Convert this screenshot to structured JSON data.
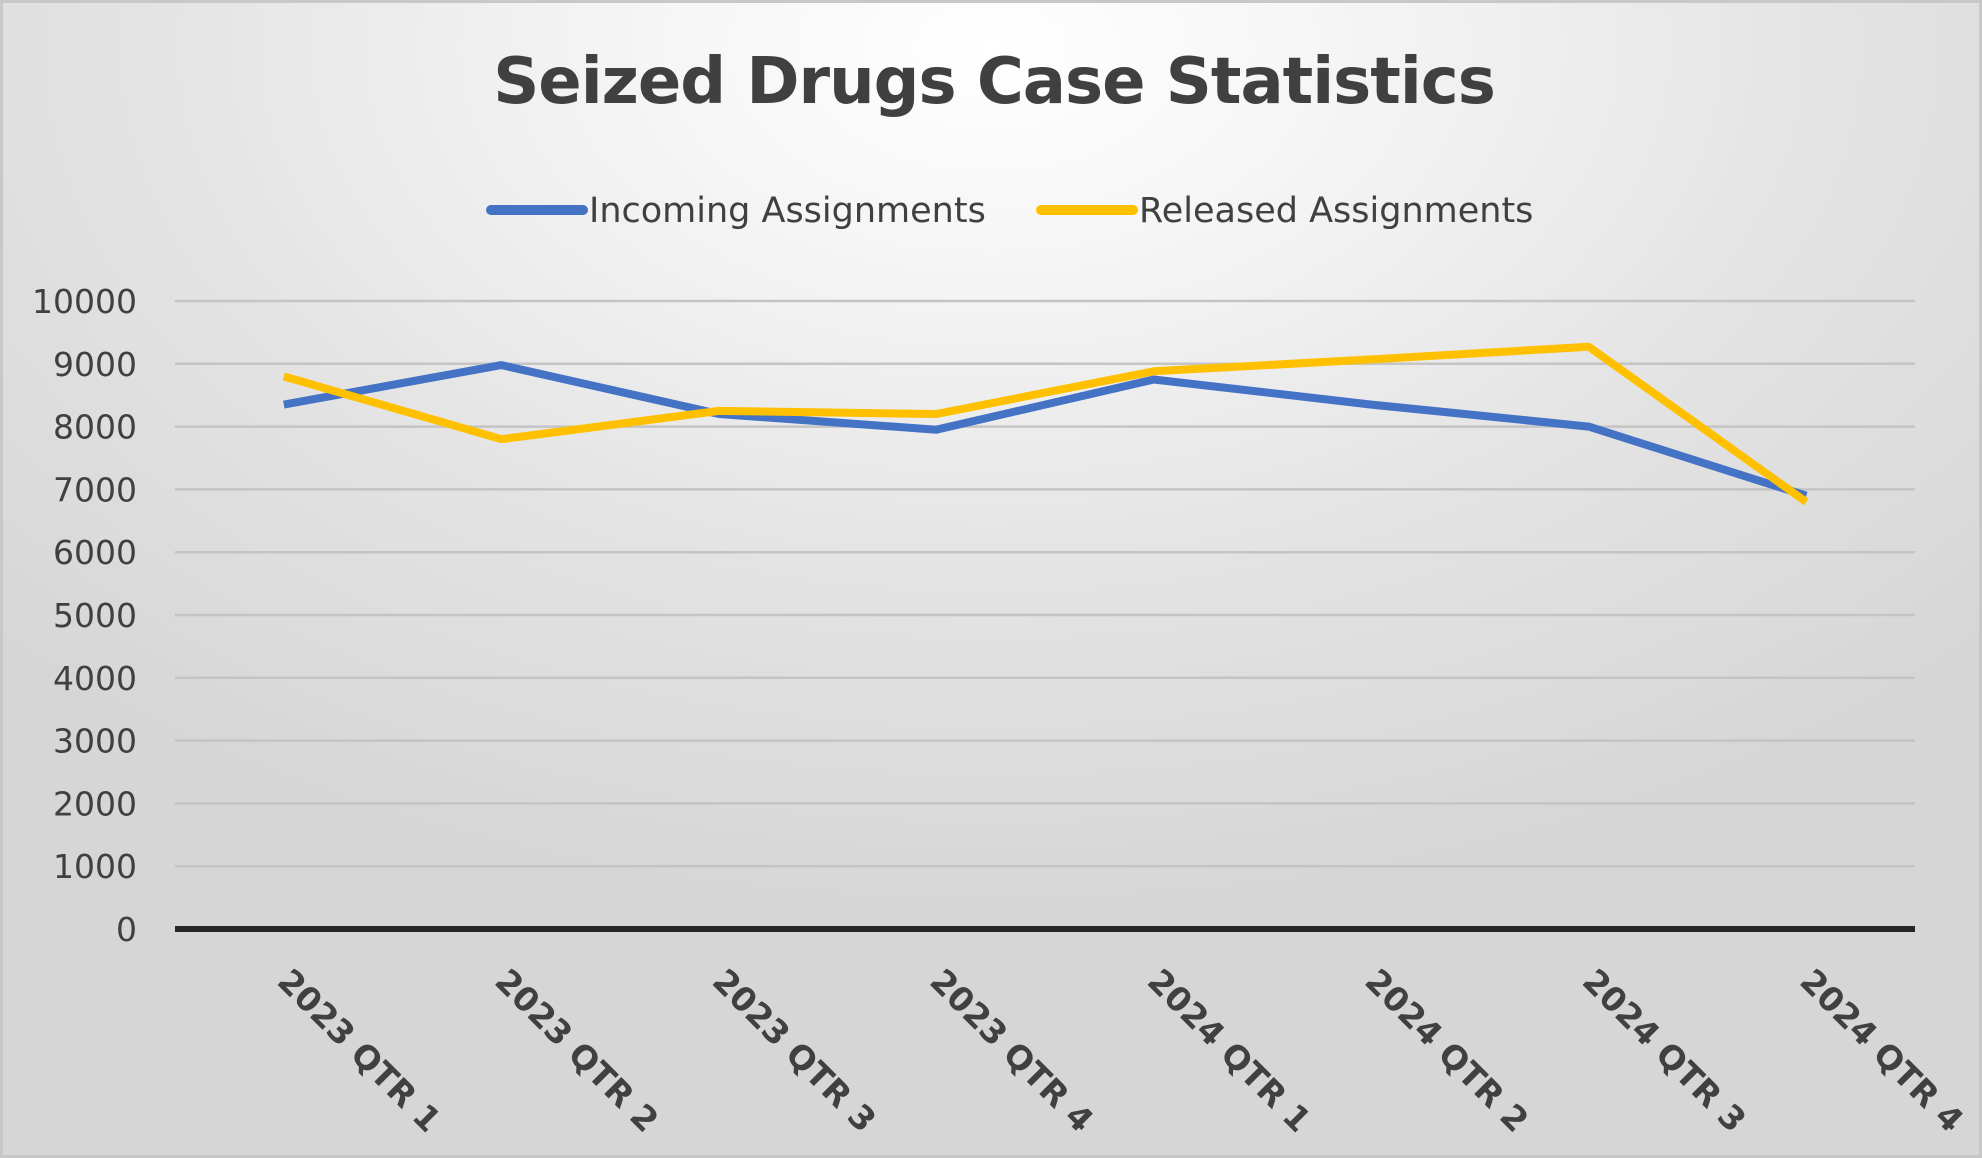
{
  "chart_data": {
    "type": "line",
    "title": "Seized Drugs Case Statistics",
    "categories": [
      "2023 QTR 1",
      "2023 QTR 2",
      "2023 QTR 3",
      "2023 QTR 4",
      "2024 QTR 1",
      "2024 QTR 2",
      "2024 QTR 3",
      "2024 QTR 4"
    ],
    "series": [
      {
        "name": "Incoming Assignments",
        "color": "#4472c4",
        "values": [
          8350,
          8980,
          8200,
          7950,
          8750,
          8350,
          8000,
          6900
        ]
      },
      {
        "name": "Released Assignments",
        "color": "#ffc000",
        "values": [
          8800,
          7800,
          8250,
          8200,
          8880,
          9070,
          9270,
          6800
        ]
      }
    ],
    "y_ticks": [
      "0",
      "1000",
      "2000",
      "3000",
      "4000",
      "5000",
      "6000",
      "7000",
      "8000",
      "9000",
      "10000"
    ],
    "ylim": [
      0,
      10000
    ],
    "xlabel": "",
    "ylabel": "",
    "grid": true,
    "legend_position": "top"
  }
}
